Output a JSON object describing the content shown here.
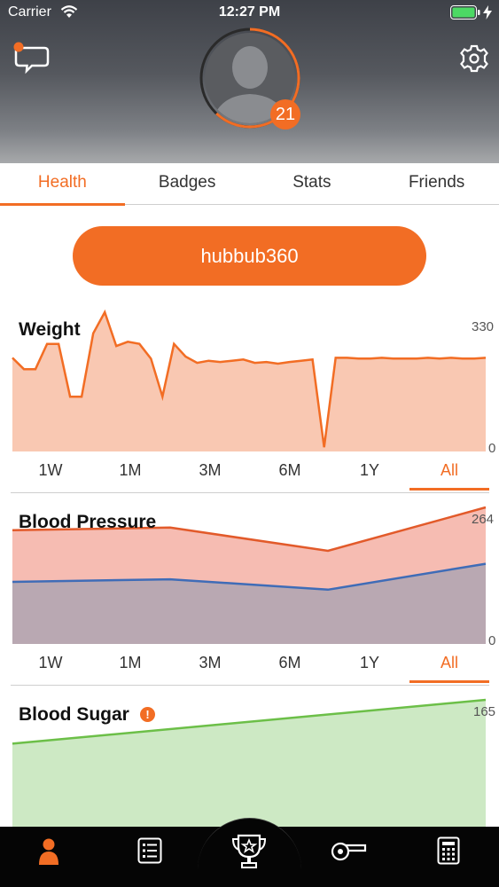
{
  "status_bar": {
    "carrier": "Carrier",
    "time": "12:27 PM"
  },
  "header": {
    "icons": [
      "chat-bubble-icon",
      "settings-gear-icon",
      "profile-avatar"
    ],
    "level": "21",
    "level_progress": 0.62
  },
  "tabs": [
    {
      "label": "Health",
      "active": true
    },
    {
      "label": "Badges",
      "active": false
    },
    {
      "label": "Stats",
      "active": false
    },
    {
      "label": "Friends",
      "active": false
    }
  ],
  "username": "hubbub360",
  "colors": {
    "accent": "#f26d24",
    "weight_fill": "#f9c8b2",
    "bp_fill": "#f6bcb2",
    "bp_systolic": "#e25a2a",
    "bp_diastolic": "#3f6cb7",
    "bp_lower_fill": "#b9a8b2",
    "sugar_line": "#6cbf48",
    "sugar_fill": "#cde9c4"
  },
  "ranges": [
    "1W",
    "1M",
    "3M",
    "6M",
    "1Y",
    "All"
  ],
  "charts": {
    "weight": {
      "title": "Weight",
      "ymax_label": "330",
      "ymin_label": "0",
      "selected_range": "All",
      "chart_data": {
        "type": "area",
        "ylim": [
          0,
          330
        ],
        "values": [
          222,
          195,
          195,
          255,
          255,
          130,
          130,
          280,
          330,
          250,
          260,
          255,
          220,
          130,
          255,
          225,
          210,
          215,
          212,
          215,
          218,
          210,
          212,
          208,
          212,
          215,
          218,
          10,
          222,
          222,
          220,
          220,
          222,
          220,
          220,
          220,
          222,
          220,
          222,
          220,
          220,
          222
        ]
      }
    },
    "blood_pressure": {
      "title": "Blood Pressure",
      "ymax_label": "264",
      "ymin_label": "0",
      "selected_range": "All",
      "chart_data": {
        "type": "area",
        "ylim": [
          0,
          264
        ],
        "series": [
          {
            "values": [
              220,
              225,
              180,
              264
            ]
          },
          {
            "values": [
              120,
              125,
              105,
              155
            ]
          }
        ]
      }
    },
    "blood_sugar": {
      "title": "Blood Sugar",
      "ymax_label": "165",
      "warning_icon": "alert-icon",
      "chart_data": {
        "type": "area",
        "ylim": [
          0,
          165
        ],
        "values": [
          108,
          165
        ]
      }
    }
  },
  "bottom_nav": [
    "profile-icon",
    "list-icon",
    "trophy-icon",
    "whistle-icon",
    "calculator-icon"
  ]
}
